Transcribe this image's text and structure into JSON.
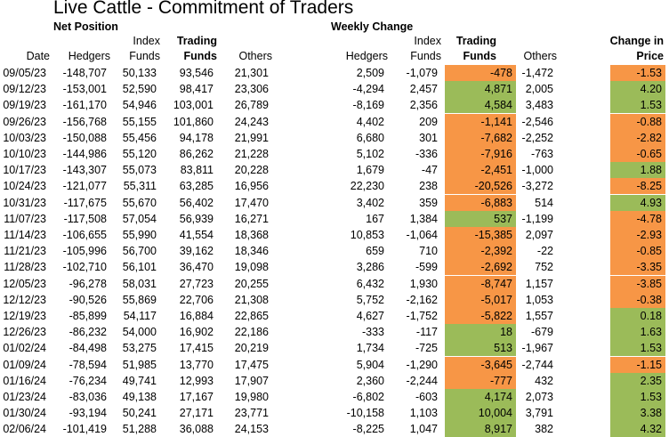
{
  "title": "Live Cattle - Commitment of Traders",
  "sections": {
    "net_position": "Net Position",
    "weekly_change": "Weekly Change"
  },
  "headers": {
    "date": "Date",
    "net_hedgers": "Hedgers",
    "net_index_top": "Index",
    "net_index_bottom": "Funds",
    "net_trading_top": "Trading",
    "net_trading_bottom": "Funds",
    "net_others": "Others",
    "wk_hedgers": "Hedgers",
    "wk_index_top": "Index",
    "wk_index_bottom": "Funds",
    "wk_trading_top": "Trading",
    "wk_trading_bottom": "Funds",
    "wk_others": "Others",
    "change_top": "Change in",
    "change_bottom": "Price"
  },
  "colors": {
    "positive": "#9bbb59",
    "negative": "#f79646"
  },
  "rows": [
    {
      "date": "09/05/23",
      "hedgers": "-148,707",
      "index": "50,133",
      "trading": "93,546",
      "others": "21,301",
      "w_hedgers": "2,509",
      "w_index": "-1,079",
      "w_trading": "-478",
      "w_others": "-1,472",
      "price": "-1.53"
    },
    {
      "date": "09/12/23",
      "hedgers": "-153,001",
      "index": "52,590",
      "trading": "98,417",
      "others": "23,306",
      "w_hedgers": "-4,294",
      "w_index": "2,457",
      "w_trading": "4,871",
      "w_others": "2,005",
      "price": "4.20"
    },
    {
      "date": "09/19/23",
      "hedgers": "-161,170",
      "index": "54,946",
      "trading": "103,001",
      "others": "26,789",
      "w_hedgers": "-8,169",
      "w_index": "2,356",
      "w_trading": "4,584",
      "w_others": "3,483",
      "price": "1.53"
    },
    {
      "date": "09/26/23",
      "hedgers": "-156,768",
      "index": "55,155",
      "trading": "101,860",
      "others": "24,243",
      "w_hedgers": "4,402",
      "w_index": "209",
      "w_trading": "-1,141",
      "w_others": "-2,546",
      "price": "-0.88"
    },
    {
      "date": "10/03/23",
      "hedgers": "-150,088",
      "index": "55,456",
      "trading": "94,178",
      "others": "21,991",
      "w_hedgers": "6,680",
      "w_index": "301",
      "w_trading": "-7,682",
      "w_others": "-2,252",
      "price": "-2.82"
    },
    {
      "date": "10/10/23",
      "hedgers": "-144,986",
      "index": "55,120",
      "trading": "86,262",
      "others": "21,228",
      "w_hedgers": "5,102",
      "w_index": "-336",
      "w_trading": "-7,916",
      "w_others": "-763",
      "price": "-0.65"
    },
    {
      "date": "10/17/23",
      "hedgers": "-143,307",
      "index": "55,073",
      "trading": "83,811",
      "others": "20,228",
      "w_hedgers": "1,679",
      "w_index": "-47",
      "w_trading": "-2,451",
      "w_others": "-1,000",
      "price": "1.88"
    },
    {
      "date": "10/24/23",
      "hedgers": "-121,077",
      "index": "55,311",
      "trading": "63,285",
      "others": "16,956",
      "w_hedgers": "22,230",
      "w_index": "238",
      "w_trading": "-20,526",
      "w_others": "-3,272",
      "price": "-8.25"
    },
    {
      "date": "10/31/23",
      "hedgers": "-117,675",
      "index": "55,670",
      "trading": "56,402",
      "others": "17,470",
      "w_hedgers": "3,402",
      "w_index": "359",
      "w_trading": "-6,883",
      "w_others": "514",
      "price": "4.93"
    },
    {
      "date": "11/07/23",
      "hedgers": "-117,508",
      "index": "57,054",
      "trading": "56,939",
      "others": "16,271",
      "w_hedgers": "167",
      "w_index": "1,384",
      "w_trading": "537",
      "w_others": "-1,199",
      "price": "-4.78"
    },
    {
      "date": "11/14/23",
      "hedgers": "-106,655",
      "index": "55,990",
      "trading": "41,554",
      "others": "18,368",
      "w_hedgers": "10,853",
      "w_index": "-1,064",
      "w_trading": "-15,385",
      "w_others": "2,097",
      "price": "-2.93"
    },
    {
      "date": "11/21/23",
      "hedgers": "-105,996",
      "index": "56,700",
      "trading": "39,162",
      "others": "18,346",
      "w_hedgers": "659",
      "w_index": "710",
      "w_trading": "-2,392",
      "w_others": "-22",
      "price": "-0.85"
    },
    {
      "date": "11/28/23",
      "hedgers": "-102,710",
      "index": "56,101",
      "trading": "36,470",
      "others": "19,098",
      "w_hedgers": "3,286",
      "w_index": "-599",
      "w_trading": "-2,692",
      "w_others": "752",
      "price": "-3.35"
    },
    {
      "date": "12/05/23",
      "hedgers": "-96,278",
      "index": "58,031",
      "trading": "27,723",
      "others": "20,255",
      "w_hedgers": "6,432",
      "w_index": "1,930",
      "w_trading": "-8,747",
      "w_others": "1,157",
      "price": "-3.85"
    },
    {
      "date": "12/12/23",
      "hedgers": "-90,526",
      "index": "55,869",
      "trading": "22,706",
      "others": "21,308",
      "w_hedgers": "5,752",
      "w_index": "-2,162",
      "w_trading": "-5,017",
      "w_others": "1,053",
      "price": "-0.38"
    },
    {
      "date": "12/19/23",
      "hedgers": "-85,899",
      "index": "54,117",
      "trading": "16,884",
      "others": "22,865",
      "w_hedgers": "4,627",
      "w_index": "-1,752",
      "w_trading": "-5,822",
      "w_others": "1,557",
      "price": "0.18"
    },
    {
      "date": "12/26/23",
      "hedgers": "-86,232",
      "index": "54,000",
      "trading": "16,902",
      "others": "22,186",
      "w_hedgers": "-333",
      "w_index": "-117",
      "w_trading": "18",
      "w_others": "-679",
      "price": "1.63"
    },
    {
      "date": "01/02/24",
      "hedgers": "-84,498",
      "index": "53,275",
      "trading": "17,415",
      "others": "20,219",
      "w_hedgers": "1,734",
      "w_index": "-725",
      "w_trading": "513",
      "w_others": "-1,967",
      "price": "1.53"
    },
    {
      "date": "01/09/24",
      "hedgers": "-78,594",
      "index": "51,985",
      "trading": "13,770",
      "others": "17,475",
      "w_hedgers": "5,904",
      "w_index": "-1,290",
      "w_trading": "-3,645",
      "w_others": "-2,744",
      "price": "-1.15"
    },
    {
      "date": "01/16/24",
      "hedgers": "-76,234",
      "index": "49,741",
      "trading": "12,993",
      "others": "17,907",
      "w_hedgers": "2,360",
      "w_index": "-2,244",
      "w_trading": "-777",
      "w_others": "432",
      "price": "2.35"
    },
    {
      "date": "01/23/24",
      "hedgers": "-83,036",
      "index": "49,138",
      "trading": "17,167",
      "others": "19,980",
      "w_hedgers": "-6,802",
      "w_index": "-603",
      "w_trading": "4,174",
      "w_others": "2,073",
      "price": "1.53"
    },
    {
      "date": "01/30/24",
      "hedgers": "-93,194",
      "index": "50,241",
      "trading": "27,171",
      "others": "23,771",
      "w_hedgers": "-10,158",
      "w_index": "1,103",
      "w_trading": "10,004",
      "w_others": "3,791",
      "price": "3.38"
    },
    {
      "date": "02/06/24",
      "hedgers": "-101,419",
      "index": "51,288",
      "trading": "36,088",
      "others": "24,153",
      "w_hedgers": "-8,225",
      "w_index": "1,047",
      "w_trading": "8,917",
      "w_others": "382",
      "price": "4.32"
    }
  ]
}
